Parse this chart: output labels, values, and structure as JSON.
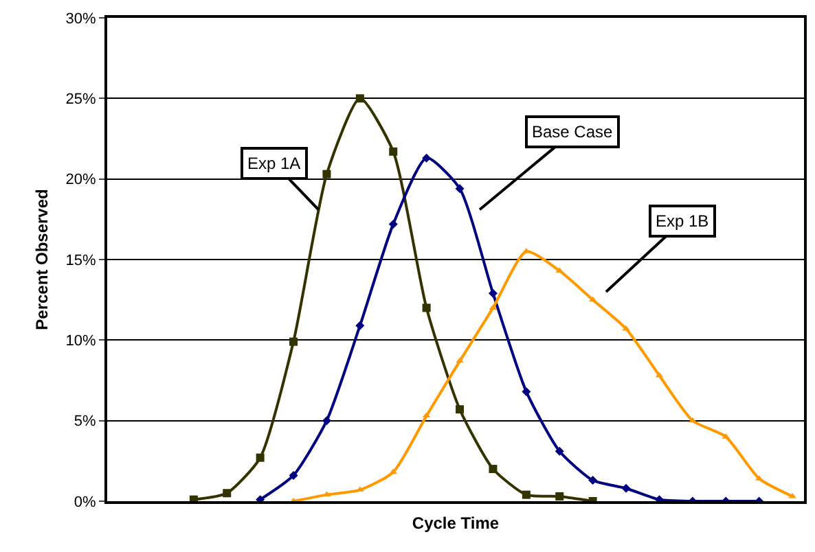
{
  "chart_data": {
    "type": "line",
    "xlabel": "Cycle Time",
    "ylabel": "Percent Observed",
    "categories": [
      null,
      null,
      null,
      null,
      null,
      null,
      null,
      null,
      null,
      null,
      null,
      null,
      null,
      null,
      null,
      null,
      null,
      null,
      null
    ],
    "series": [
      {
        "name": "Exp 1A",
        "color": "#333300",
        "marker": "square",
        "values": [
          0.1,
          0.5,
          2.7,
          9.9,
          20.3,
          25.0,
          21.7,
          12.0,
          5.7,
          2.0,
          0.4,
          0.3,
          0.0,
          null,
          null,
          null,
          null,
          null,
          null
        ]
      },
      {
        "name": "Base Case",
        "color": "#000080",
        "marker": "diamond",
        "values": [
          null,
          null,
          0.1,
          1.6,
          5.0,
          10.9,
          17.2,
          21.3,
          19.4,
          12.9,
          6.8,
          3.1,
          1.3,
          0.8,
          0.1,
          0.0,
          0.0,
          0.0,
          null
        ]
      },
      {
        "name": "Exp 1B",
        "color": "#ff9900",
        "marker": "triangle",
        "values": [
          null,
          null,
          null,
          0.0,
          0.4,
          0.7,
          1.8,
          5.3,
          8.7,
          12.0,
          15.5,
          14.3,
          12.5,
          10.7,
          7.8,
          5.0,
          4.0,
          1.4,
          0.3
        ]
      }
    ],
    "ylim": [
      0,
      30
    ],
    "yticks": [
      {
        "value": 0,
        "label": "0%"
      },
      {
        "value": 5,
        "label": "5%"
      },
      {
        "value": 10,
        "label": "10%"
      },
      {
        "value": 15,
        "label": "15%"
      },
      {
        "value": 20,
        "label": "20%"
      },
      {
        "value": 25,
        "label": "25%"
      },
      {
        "value": 30,
        "label": "30%"
      }
    ],
    "grid": "y",
    "legend": false
  }
}
